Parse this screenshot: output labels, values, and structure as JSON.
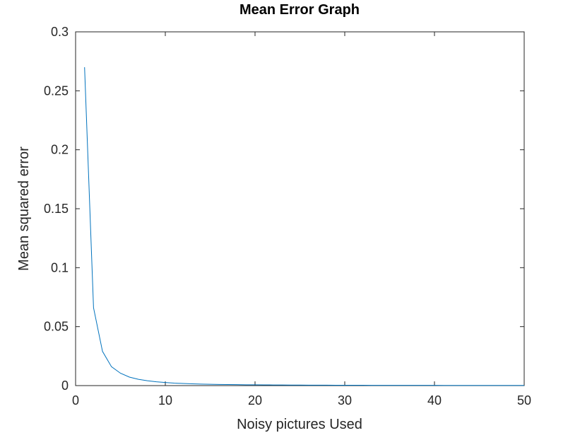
{
  "chart_data": {
    "type": "line",
    "title": "Mean Error Graph",
    "xlabel": "Noisy pictures Used",
    "ylabel": "Mean squared error",
    "xlim": [
      0,
      50
    ],
    "ylim": [
      0,
      0.3
    ],
    "x_ticks": [
      "0",
      "10",
      "20",
      "30",
      "40",
      "50"
    ],
    "y_ticks": [
      "0",
      "0.05",
      "0.1",
      "0.15",
      "0.2",
      "0.25",
      "0.3"
    ],
    "grid": false,
    "legend": "none",
    "series": [
      {
        "color": "#0072BD",
        "x": [
          1,
          2,
          3,
          4,
          5,
          6,
          7,
          8,
          9,
          10,
          11,
          12,
          13,
          14,
          15,
          16,
          17,
          18,
          19,
          20,
          21,
          22,
          23,
          24,
          25,
          26,
          27,
          28,
          29,
          30,
          31,
          32,
          33,
          34,
          35,
          36,
          37,
          38,
          39,
          40,
          41,
          42,
          43,
          44,
          45,
          46,
          47,
          48,
          49,
          50
        ],
        "y": [
          0.27,
          0.066,
          0.029,
          0.016,
          0.0105,
          0.0072,
          0.0053,
          0.0041,
          0.0032,
          0.0026,
          0.0021,
          0.0018,
          0.0015,
          0.0013,
          0.0011,
          0.001,
          0.0009,
          0.0008,
          0.0007,
          0.00065,
          0.0006,
          0.00055,
          0.0005,
          0.00046,
          0.00043,
          0.0004,
          0.00037,
          0.00035,
          0.00033,
          0.00031,
          0.00029,
          0.00027,
          0.00026,
          0.00025,
          0.00024,
          0.00023,
          0.00022,
          0.00021,
          0.0002,
          0.00019,
          0.00018,
          0.00017,
          0.00016,
          0.00016,
          0.00015,
          0.00015,
          0.00014,
          0.00014,
          0.00013,
          0.00013
        ]
      }
    ]
  }
}
